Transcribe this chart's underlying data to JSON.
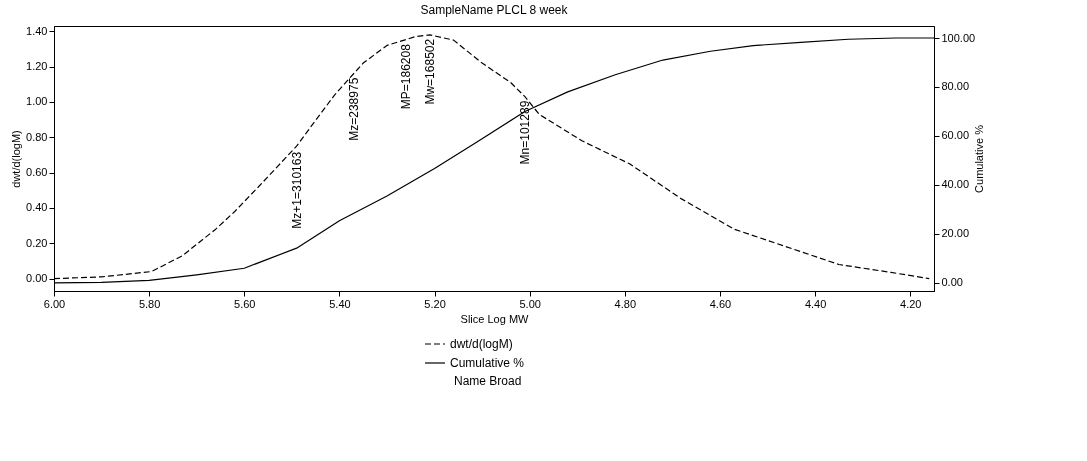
{
  "chart_data": {
    "type": "line",
    "title": "SampleName PLCL 8 week",
    "xlabel": "Slice Log MW",
    "ylabel": "dwt/d(logM)",
    "y2label": "Cumulative %",
    "xlim": [
      6.0,
      4.15
    ],
    "xticks": [
      {
        "value": 6,
        "label": "6.00"
      },
      {
        "value": 5.8,
        "label": "5.80"
      },
      {
        "value": 5.6,
        "label": "5.60"
      },
      {
        "value": 5.4,
        "label": "5.40"
      },
      {
        "value": 5.2,
        "label": "5.20"
      },
      {
        "value": 5,
        "label": "5.00"
      },
      {
        "value": 4.8,
        "label": "4.80"
      },
      {
        "value": 4.6,
        "label": "4.60"
      },
      {
        "value": 4.4,
        "label": "4.40"
      },
      {
        "value": 4.2,
        "label": "4.20"
      }
    ],
    "ylim": [
      -0.07,
      1.43
    ],
    "yticks": [
      {
        "value": 0,
        "label": "0.00"
      },
      {
        "value": 0.2,
        "label": "0.20"
      },
      {
        "value": 0.4,
        "label": "0.40"
      },
      {
        "value": 0.6,
        "label": "0.60"
      },
      {
        "value": 0.8,
        "label": "0.80"
      },
      {
        "value": 1,
        "label": "1.00"
      },
      {
        "value": 1.2,
        "label": "1.20"
      },
      {
        "value": 1.4,
        "label": "1.40"
      }
    ],
    "y2lim": [
      -3.3,
      104.9
    ],
    "y2ticks": [
      {
        "value": 0,
        "label": "0.00"
      },
      {
        "value": 20,
        "label": "20.00"
      },
      {
        "value": 40,
        "label": "40.00"
      },
      {
        "value": 60,
        "label": "60.00"
      },
      {
        "value": 80,
        "label": "80.00"
      },
      {
        "value": 100,
        "label": "100.00"
      }
    ],
    "grid": false,
    "legend": "bottom",
    "marker": "none",
    "series": [
      {
        "name": "dwt/d(logM)",
        "color": "#000000",
        "line_style": "dashed",
        "x": [
          6.0,
          5.9,
          5.795,
          5.73,
          5.66,
          5.62,
          5.57,
          5.49,
          5.46,
          5.41,
          5.35,
          5.3,
          5.24,
          5.21,
          5.16,
          5.1,
          5.04,
          5.01,
          4.98,
          4.89,
          4.79,
          4.68,
          4.57,
          4.46,
          4.35,
          4.24,
          4.16
        ],
        "values": [
          0.0,
          0.01,
          0.04,
          0.13,
          0.28,
          0.38,
          0.52,
          0.75,
          0.86,
          1.04,
          1.22,
          1.32,
          1.37,
          1.38,
          1.35,
          1.22,
          1.11,
          1.03,
          0.93,
          0.78,
          0.65,
          0.45,
          0.28,
          0.18,
          0.08,
          0.035,
          0.0
        ]
      },
      {
        "name": "Cumulative %",
        "color": "#000000",
        "line_style": "solid",
        "axis": "y2",
        "x": [
          6.0,
          5.9,
          5.8,
          5.7,
          5.6,
          5.49,
          5.4,
          5.3,
          5.2,
          5.11,
          5.01,
          4.92,
          4.82,
          4.72,
          4.62,
          4.53,
          4.43,
          4.33,
          4.23,
          4.15
        ],
        "values": [
          0,
          0.2,
          1,
          3.3,
          6,
          14.2,
          25.4,
          35.5,
          46.7,
          57.6,
          70,
          78,
          85,
          91,
          94.6,
          96.9,
          98.2,
          99.5,
          100,
          100
        ]
      }
    ],
    "annotations": [
      {
        "text": "Mz+1=310163",
        "x": 5.49,
        "y": 0.74
      },
      {
        "text": "Mz=238975",
        "x": 5.37,
        "y": 1.16
      },
      {
        "text": "MP=186208",
        "x": 5.26,
        "y": 1.35
      },
      {
        "text": "Mw=168502",
        "x": 5.21,
        "y": 1.38
      },
      {
        "text": "Mn=101289",
        "x": 5.01,
        "y": 1.03
      },
      "Name Broad"
    ]
  }
}
